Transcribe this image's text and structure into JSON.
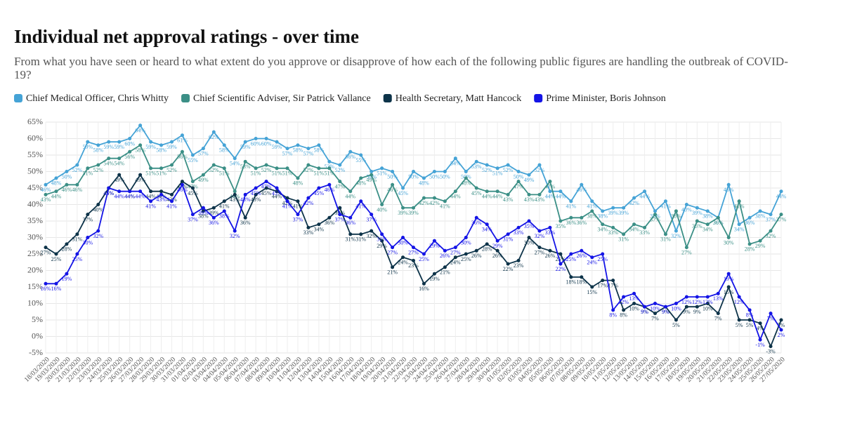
{
  "chart_data": {
    "type": "line",
    "title": "Individual net approval ratings - over time",
    "subtitle": "From what you have seen or heard to what extent do you approve or disapprove of how each of the following public figures are handling the outbreak of COVID-19?",
    "categories": [
      "18/03/2020",
      "19/03/2020",
      "20/03/2020",
      "21/03/2020",
      "22/03/2020",
      "23/03/2020",
      "24/03/2020",
      "25/03/2020",
      "26/03/2020",
      "27/03/2020",
      "28/03/2020",
      "29/03/2020",
      "30/03/2020",
      "31/03/2020",
      "01/04/2020",
      "02/04/2020",
      "03/04/2020",
      "04/04/2020",
      "05/04/2020",
      "06/04/2020",
      "07/04/2020",
      "08/04/2020",
      "09/04/2020",
      "10/04/2020",
      "11/04/2020",
      "12/04/2020",
      "13/04/2020",
      "14/04/2020",
      "15/04/2020",
      "16/04/2020",
      "17/04/2020",
      "18/04/2020",
      "19/04/2020",
      "20/04/2020",
      "21/04/2020",
      "22/04/2020",
      "23/04/2020",
      "24/04/2020",
      "25/04/2020",
      "26/04/2020",
      "27/04/2020",
      "28/04/2020",
      "29/04/2020",
      "30/04/2020",
      "01/05/2020",
      "02/05/2020",
      "03/05/2020",
      "04/05/2020",
      "05/05/2020",
      "06/05/2020",
      "07/05/2020",
      "08/05/2020",
      "09/05/2020",
      "10/05/2020",
      "11/05/2020",
      "12/05/2020",
      "13/05/2020",
      "14/05/2020",
      "15/05/2020",
      "16/05/2020",
      "17/05/2020",
      "18/05/2020",
      "19/05/2020",
      "20/05/2020",
      "21/05/2020",
      "22/05/2020",
      "23/05/2020",
      "24/05/2020",
      "25/05/2020",
      "26/05/2020",
      "27/05/2020"
    ],
    "series": [
      {
        "name": "Chief Medical Officer, Chris Whitty",
        "color": "#45a3d6",
        "values": [
          46,
          48,
          50,
          52,
          59,
          58,
          59,
          59,
          60,
          64,
          59,
          58,
          59,
          61,
          55,
          57,
          62,
          58,
          54,
          59,
          60,
          60,
          59,
          57,
          58,
          57,
          58,
          53,
          52,
          56,
          55,
          50,
          51,
          50,
          45,
          50,
          48,
          50,
          50,
          54,
          50,
          53,
          52,
          51,
          52,
          50,
          49,
          52,
          44,
          44,
          41,
          46,
          41,
          38,
          39,
          39,
          42,
          44,
          38,
          41,
          32,
          40,
          39,
          38,
          36,
          46,
          34,
          36,
          38,
          37,
          44
        ],
        "value_labels": [
          "46%",
          "48%",
          "50%",
          "52%",
          "59%",
          "58%",
          "59%",
          "59%",
          "60%",
          "64%",
          "59%",
          "58%",
          "59%",
          "61%",
          "55%",
          "57%",
          "62%",
          "58%",
          "54%",
          "59%",
          "60%",
          "60%",
          "59%",
          "57%",
          "58%",
          "57%",
          "58%",
          "53%",
          "52%",
          "56%",
          "55%",
          "50%",
          "51%",
          "50%",
          "45%",
          "50%",
          "48%",
          "50%",
          "50%",
          "54%",
          "50%",
          "53%",
          "52%",
          "51%",
          "52%",
          "50%",
          "49%",
          "52%",
          "44%",
          "44%",
          "41%",
          "46%",
          "41%",
          "38%",
          "39%",
          "39%",
          "42%",
          "44%",
          "38%",
          "41%",
          "32%",
          "40%",
          "39%",
          "38%",
          "36%",
          "46%",
          "34%",
          "36%",
          "38%",
          "37%",
          "44%"
        ]
      },
      {
        "name": "Chief Scientific Adviser, Sir Patrick Vallance",
        "color": "#3b8f86",
        "values": [
          43,
          44,
          46,
          46,
          51,
          52,
          54,
          54,
          56,
          58,
          51,
          51,
          52,
          56,
          47,
          49,
          52,
          51,
          44,
          53,
          51,
          52,
          51,
          51,
          48,
          52,
          51,
          51,
          47,
          44,
          48,
          49,
          40,
          46,
          39,
          39,
          42,
          42,
          41,
          44,
          48,
          45,
          44,
          44,
          43,
          47,
          43,
          43,
          47,
          35,
          36,
          36,
          38,
          34,
          33,
          31,
          34,
          33,
          37,
          31,
          38,
          27,
          35,
          34,
          36,
          30,
          41,
          28,
          29,
          32,
          37
        ],
        "value_labels": [
          "43%",
          "44%",
          "46%",
          "46%",
          "51%",
          "52%",
          "54%",
          "54%",
          "56%",
          "58%",
          "51%",
          "51%",
          "52%",
          "56%",
          "47%",
          "49%",
          "52%",
          "51%",
          "44%",
          "53%",
          "51%",
          "52%",
          "51%",
          "51%",
          "48%",
          "52%",
          "51%",
          "51%",
          "47%",
          "44%",
          "48%",
          "49%",
          "40%",
          "46%",
          "39%",
          "39%",
          "42%",
          "42%",
          "41%",
          "44%",
          "48%",
          "45%",
          "44%",
          "44%",
          "43%",
          "47%",
          "43%",
          "43%",
          "47%",
          "35%",
          "36%",
          "36%",
          "38%",
          "34%",
          "33%",
          "31%",
          "34%",
          "33%",
          "37%",
          "31%",
          "38%",
          "27%",
          "35%",
          "34%",
          "36%",
          "30%",
          "41%",
          "28%",
          "29%",
          "32%",
          "37%"
        ]
      },
      {
        "name": "Health Secretary, Matt Hancock",
        "color": "#0d3349",
        "values": [
          27,
          25,
          28,
          31,
          37,
          40,
          45,
          49,
          44,
          49,
          44,
          44,
          43,
          47,
          45,
          38,
          39,
          41,
          43,
          36,
          43,
          45,
          44,
          42,
          41,
          33,
          34,
          36,
          39,
          31,
          31,
          32,
          29,
          21,
          24,
          23,
          16,
          19,
          21,
          24,
          25,
          26,
          28,
          26,
          22,
          23,
          30,
          27,
          26,
          25,
          18,
          18,
          15,
          17,
          17,
          8,
          10,
          9,
          7,
          9,
          5,
          9,
          9,
          10,
          7,
          15,
          5,
          5,
          4,
          -3,
          5
        ],
        "value_labels": [
          "27%",
          "25%",
          "28%",
          "31%",
          "37%",
          "40%",
          "45%",
          "49%",
          "44%",
          "49%",
          "44%",
          "44%",
          "43%",
          "47%",
          "45%",
          "38%",
          "39%",
          "41%",
          "43%",
          "36%",
          "43%",
          "45%",
          "44%",
          "42%",
          "41%",
          "33%",
          "34%",
          "36%",
          "39%",
          "31%",
          "31%",
          "32%",
          "29%",
          "21%",
          "24%",
          "23%",
          "16%",
          "19%",
          "21%",
          "24%",
          "25%",
          "26%",
          "28%",
          "26%",
          "22%",
          "23%",
          "30%",
          "27%",
          "26%",
          "25%",
          "18%",
          "18%",
          "15%",
          "17%",
          "17%",
          "8%",
          "10%",
          "9%",
          "7%",
          "9%",
          "5%",
          "9%",
          "9%",
          "10%",
          "7%",
          "15%",
          "5%",
          "5%",
          "4%",
          "-3%",
          "5%"
        ]
      },
      {
        "name": "Prime Minister, Boris Johnson",
        "color": "#1414e6",
        "values": [
          16,
          16,
          19,
          25,
          30,
          32,
          45,
          44,
          44,
          44,
          41,
          43,
          41,
          46,
          37,
          39,
          36,
          38,
          32,
          43,
          45,
          47,
          45,
          41,
          37,
          42,
          45,
          46,
          37,
          36,
          41,
          37,
          31,
          27,
          30,
          27,
          25,
          29,
          26,
          27,
          30,
          36,
          34,
          29,
          31,
          33,
          35,
          32,
          33,
          22,
          25,
          26,
          24,
          25,
          8,
          12,
          13,
          9,
          10,
          9,
          10,
          12,
          12,
          12,
          13,
          19,
          12,
          8,
          -1,
          7,
          2
        ],
        "value_labels": [
          "16%",
          "16%",
          "19%",
          "25%",
          "30%",
          "32%",
          "45%",
          "44%",
          "44%",
          "44%",
          "41%",
          "43%",
          "41%",
          "46%",
          "37%",
          "39%",
          "36%",
          "38%",
          "32%",
          "43%",
          "45%",
          "47%",
          "45%",
          "41%",
          "37%",
          "42%",
          "45%",
          "46%",
          "37%",
          "36%",
          "41%",
          "37%",
          "31%",
          "27%",
          "30%",
          "27%",
          "25%",
          "29%",
          "26%",
          "27%",
          "30%",
          "36%",
          "34%",
          "29%",
          "31%",
          "33%",
          "35%",
          "32%",
          "33%",
          "22%",
          "25%",
          "26%",
          "24%",
          "25%",
          "8%",
          "12%",
          "13%",
          "9%",
          "10%",
          "9%",
          "10%",
          "12%",
          "12%",
          "12%",
          "13%",
          "19%",
          "12%",
          "8%",
          "-1%",
          "7%",
          "2%"
        ]
      }
    ],
    "ylim": [
      -5,
      65
    ],
    "yticks": [
      {
        "value": -5,
        "label": "-5%"
      },
      {
        "value": 0,
        "label": "0%"
      },
      {
        "value": 5,
        "label": "5%"
      },
      {
        "value": 10,
        "label": "10%"
      },
      {
        "value": 15,
        "label": "15%"
      },
      {
        "value": 20,
        "label": "20%"
      },
      {
        "value": 25,
        "label": "25%"
      },
      {
        "value": 30,
        "label": "30%"
      },
      {
        "value": 35,
        "label": "35%"
      },
      {
        "value": 40,
        "label": "40%"
      },
      {
        "value": 45,
        "label": "45%"
      },
      {
        "value": 50,
        "label": "50%"
      },
      {
        "value": 55,
        "label": "55%"
      },
      {
        "value": 60,
        "label": "60%"
      },
      {
        "value": 65,
        "label": "65%"
      }
    ],
    "grid": true
  }
}
